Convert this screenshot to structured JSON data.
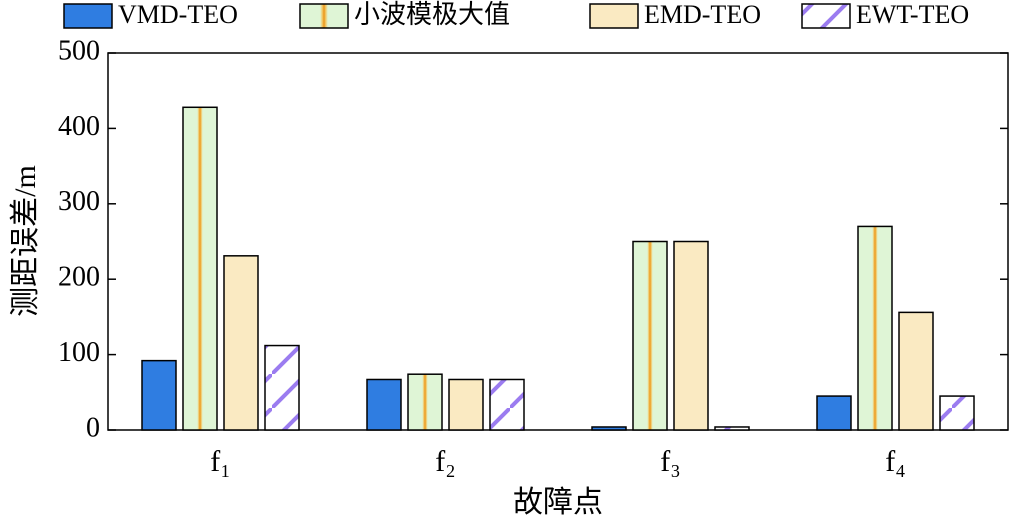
{
  "chart_data": {
    "type": "bar",
    "categories": [
      "f₁",
      "f₂",
      "f₃",
      "f₄"
    ],
    "series": [
      {
        "name": "VMD-TEO",
        "color": "#2f7de1",
        "values": [
          92,
          67,
          4,
          45
        ]
      },
      {
        "name": "小波模极大值",
        "color": "#dff5d6",
        "pattern": "stripe",
        "values": [
          428,
          74,
          250,
          270
        ]
      },
      {
        "name": "EMD-TEO",
        "color": "#faeac2",
        "values": [
          231,
          67,
          250,
          156
        ]
      },
      {
        "name": "EWT-TEO",
        "color": "#ffffff",
        "pattern": "hatch",
        "values": [
          112,
          67,
          4,
          45
        ]
      }
    ],
    "ylim": [
      0,
      500
    ],
    "yticks": [
      0,
      100,
      200,
      300,
      400,
      500
    ],
    "ylabel": "测距误差/m",
    "xlabel": "故障点",
    "legend": "top"
  }
}
